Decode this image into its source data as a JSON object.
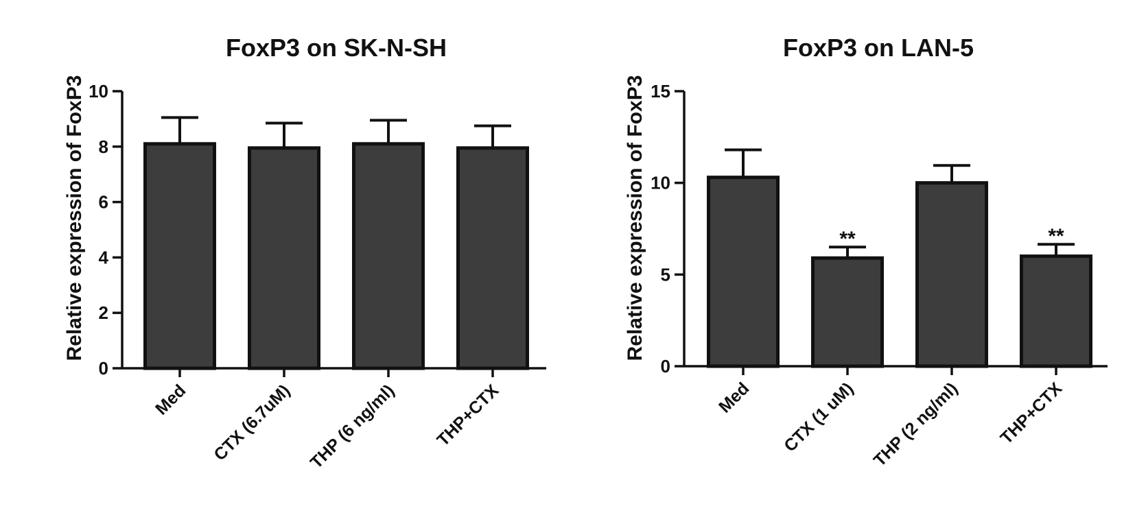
{
  "colors": {
    "bar_fill": "#3d3d3d",
    "bar_stroke": "#111111",
    "axis": "#111111",
    "background": "#ffffff"
  },
  "chart_data": [
    {
      "type": "bar",
      "title": "FoxP3 on SK-N-SH",
      "xlabel": "",
      "ylabel": "Relative expression of FoxP3",
      "ylim": [
        0,
        10
      ],
      "yticks": [
        0,
        2,
        4,
        6,
        8,
        10
      ],
      "ytick_labels": [
        "0",
        "2",
        "4",
        "6",
        "8",
        "10"
      ],
      "categories": [
        "Med",
        "CTX (6.7uM)",
        "THP (6 ng/ml)",
        "THP+CTX"
      ],
      "values": [
        8.1,
        7.95,
        8.1,
        7.95
      ],
      "errors": [
        0.95,
        0.9,
        0.85,
        0.8
      ],
      "annotations": [
        "",
        "",
        "",
        ""
      ],
      "grid": false,
      "legend": "none"
    },
    {
      "type": "bar",
      "title": "FoxP3 on LAN-5",
      "xlabel": "",
      "ylabel": "Relative expression of FoxP3",
      "ylim": [
        0,
        15
      ],
      "yticks": [
        0,
        5,
        10,
        15
      ],
      "ytick_labels": [
        "0",
        "5",
        "10",
        "15"
      ],
      "categories": [
        "Med",
        "CTX (1 uM)",
        "THP (2 ng/ml)",
        "THP+CTX"
      ],
      "values": [
        10.3,
        5.9,
        10.0,
        6.0
      ],
      "errors": [
        1.5,
        0.6,
        0.95,
        0.65
      ],
      "annotations": [
        "",
        "**",
        "",
        "**"
      ],
      "grid": false,
      "legend": "none"
    }
  ]
}
